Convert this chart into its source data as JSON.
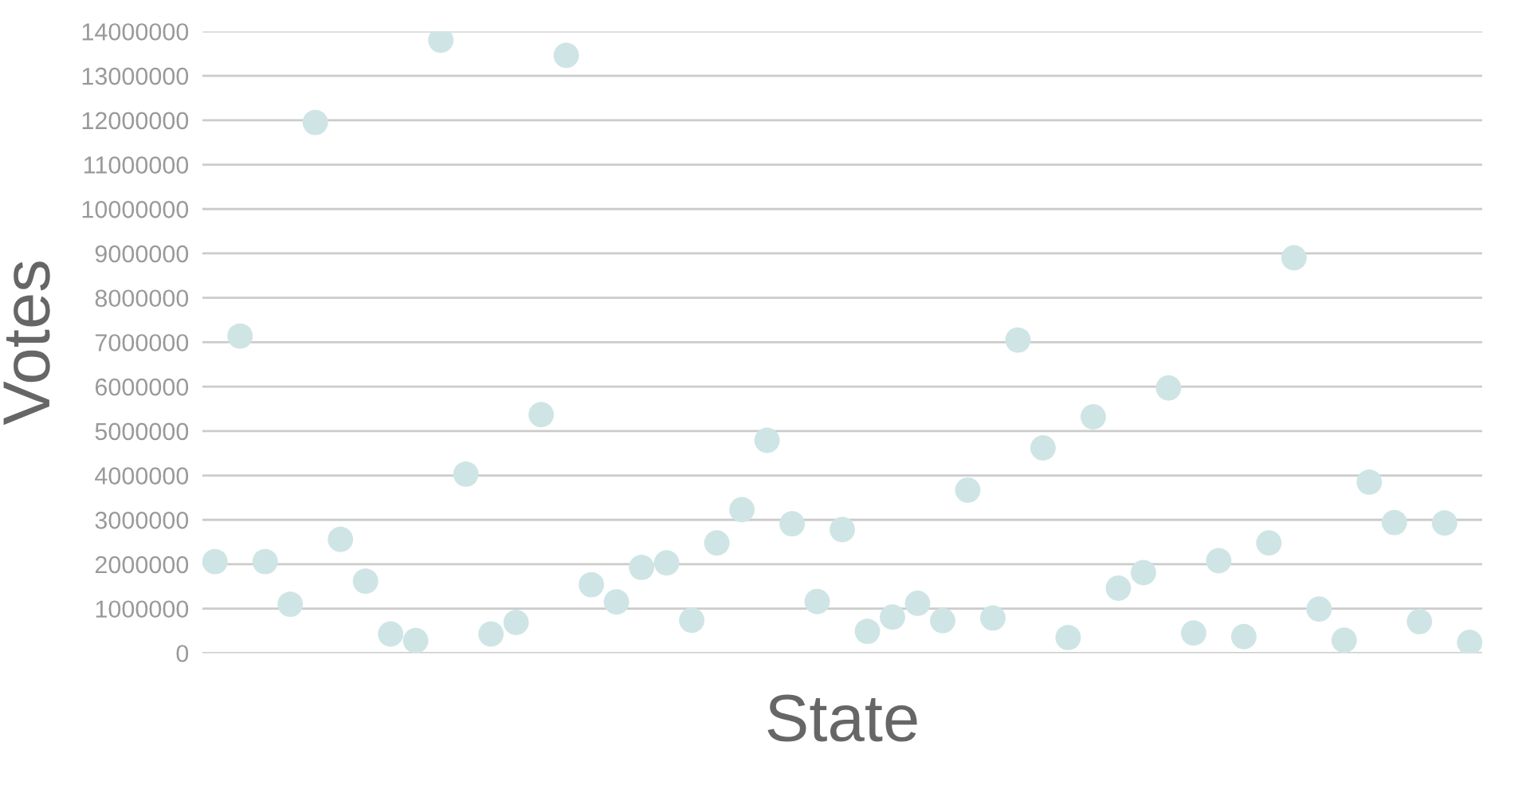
{
  "chart_data": {
    "type": "scatter",
    "xlabel": "State",
    "ylabel": "Votes",
    "categories": [
      null,
      null,
      null,
      null,
      null,
      null,
      null,
      null,
      null,
      null,
      null,
      null,
      null,
      null,
      null,
      null,
      null,
      null,
      null,
      null,
      null,
      null,
      null,
      null,
      null,
      null,
      null,
      null,
      null,
      null,
      null,
      null,
      null,
      null,
      null,
      null,
      null,
      null,
      null,
      null,
      null,
      null,
      null,
      null,
      null,
      null,
      null,
      null,
      null,
      null,
      null
    ],
    "series": [
      {
        "color": "#cfe5e5",
        "values": [
          2060000,
          7140000,
          2060000,
          1100000,
          11950000,
          2560000,
          1620000,
          430000,
          280000,
          13800000,
          4030000,
          430000,
          690000,
          5370000,
          13460000,
          1540000,
          1150000,
          1930000,
          2030000,
          740000,
          2480000,
          3230000,
          4790000,
          2910000,
          1160000,
          2780000,
          490000,
          810000,
          1120000,
          730000,
          3670000,
          790000,
          7050000,
          4620000,
          350000,
          5320000,
          1460000,
          1810000,
          5970000,
          450000,
          2080000,
          370000,
          2480000,
          8900000,
          990000,
          290000,
          3850000,
          2940000,
          710000,
          2930000,
          240000
        ]
      }
    ],
    "ylim": [
      0,
      14000000
    ],
    "yticks": [
      0,
      1000000,
      2000000,
      3000000,
      4000000,
      5000000,
      6000000,
      7000000,
      8000000,
      9000000,
      10000000,
      11000000,
      12000000,
      13000000,
      14000000
    ],
    "grid": "y",
    "tick_labels": "y",
    "marker": "circle"
  }
}
